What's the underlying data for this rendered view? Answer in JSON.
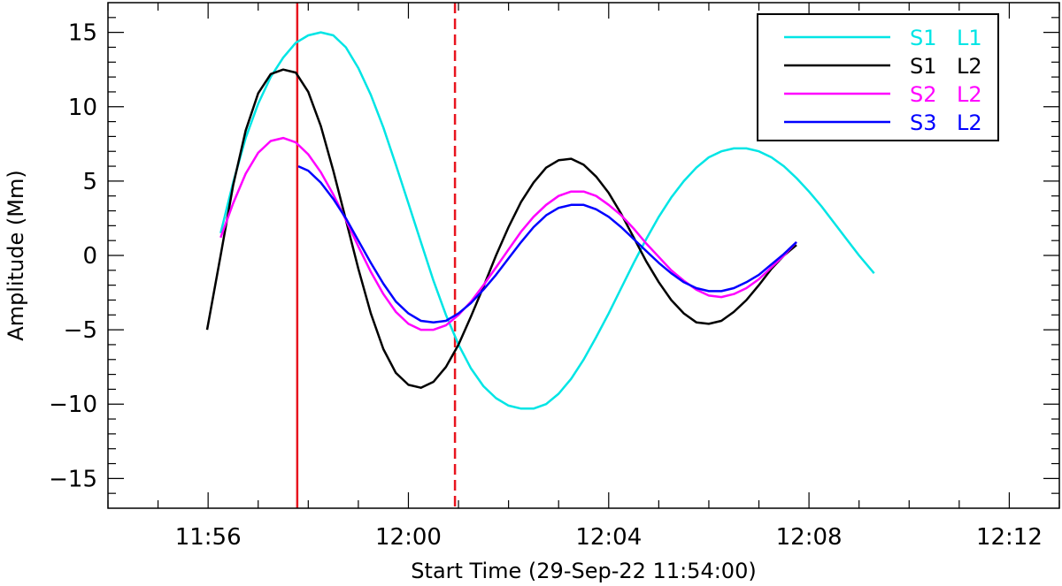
{
  "chart_data": {
    "type": "line",
    "xlabel": "Start Time (29-Sep-22 11:54:00)",
    "ylabel": "Amplitude (Mm)",
    "xlim": [
      0,
      19
    ],
    "ylim": [
      -17,
      17
    ],
    "xticks": [
      {
        "value": 2,
        "label": "11:56"
      },
      {
        "value": 6,
        "label": "12:00"
      },
      {
        "value": 10,
        "label": "12:04"
      },
      {
        "value": 14,
        "label": "12:08"
      },
      {
        "value": 18,
        "label": "12:12"
      }
    ],
    "yticks": [
      {
        "value": 15,
        "label": "15"
      },
      {
        "value": 10,
        "label": "10"
      },
      {
        "value": 5,
        "label": "5"
      },
      {
        "value": 0,
        "label": "0"
      },
      {
        "value": -5,
        "label": "−5"
      },
      {
        "value": -10,
        "label": "−10"
      },
      {
        "value": -15,
        "label": "−15"
      }
    ],
    "vlines": [
      {
        "x": 3.78,
        "color": "#e8141e",
        "style": "solid"
      },
      {
        "x": 6.93,
        "color": "#e8141e",
        "style": "dashed"
      }
    ],
    "legend_position": "top-right",
    "series": [
      {
        "name_parts": [
          "S1",
          "L1"
        ],
        "color": "#00e5e5",
        "points": [
          [
            2.25,
            1.5
          ],
          [
            2.5,
            4.9
          ],
          [
            2.75,
            7.9
          ],
          [
            3.0,
            10.2
          ],
          [
            3.25,
            12.0
          ],
          [
            3.5,
            13.3
          ],
          [
            3.75,
            14.3
          ],
          [
            4.0,
            14.8
          ],
          [
            4.25,
            15.0
          ],
          [
            4.5,
            14.8
          ],
          [
            4.75,
            14.0
          ],
          [
            5.0,
            12.6
          ],
          [
            5.25,
            10.8
          ],
          [
            5.5,
            8.6
          ],
          [
            5.75,
            6.1
          ],
          [
            6.0,
            3.5
          ],
          [
            6.25,
            0.9
          ],
          [
            6.5,
            -1.7
          ],
          [
            6.75,
            -4.0
          ],
          [
            7.0,
            -6.0
          ],
          [
            7.25,
            -7.6
          ],
          [
            7.5,
            -8.8
          ],
          [
            7.75,
            -9.6
          ],
          [
            8.0,
            -10.1
          ],
          [
            8.25,
            -10.3
          ],
          [
            8.5,
            -10.3
          ],
          [
            8.75,
            -10.0
          ],
          [
            9.0,
            -9.3
          ],
          [
            9.25,
            -8.3
          ],
          [
            9.5,
            -7.0
          ],
          [
            9.75,
            -5.5
          ],
          [
            10.0,
            -3.9
          ],
          [
            10.25,
            -2.2
          ],
          [
            10.5,
            -0.5
          ],
          [
            10.75,
            1.1
          ],
          [
            11.0,
            2.6
          ],
          [
            11.25,
            3.9
          ],
          [
            11.5,
            5.0
          ],
          [
            11.75,
            5.9
          ],
          [
            12.0,
            6.6
          ],
          [
            12.25,
            7.0
          ],
          [
            12.5,
            7.2
          ],
          [
            12.75,
            7.2
          ],
          [
            13.0,
            7.0
          ],
          [
            13.25,
            6.6
          ],
          [
            13.5,
            6.0
          ],
          [
            13.75,
            5.2
          ],
          [
            14.0,
            4.3
          ],
          [
            14.25,
            3.3
          ],
          [
            14.5,
            2.2
          ],
          [
            14.75,
            1.1
          ],
          [
            15.0,
            0.0
          ],
          [
            15.3,
            -1.2
          ]
        ]
      },
      {
        "name_parts": [
          "S1",
          "L2"
        ],
        "color": "#000000",
        "points": [
          [
            1.98,
            -5.0
          ],
          [
            2.25,
            0.0
          ],
          [
            2.5,
            4.7
          ],
          [
            2.75,
            8.4
          ],
          [
            3.0,
            10.9
          ],
          [
            3.25,
            12.2
          ],
          [
            3.5,
            12.5
          ],
          [
            3.75,
            12.3
          ],
          [
            4.0,
            11.0
          ],
          [
            4.25,
            8.7
          ],
          [
            4.5,
            5.7
          ],
          [
            4.75,
            2.4
          ],
          [
            5.0,
            -0.9
          ],
          [
            5.25,
            -3.9
          ],
          [
            5.5,
            -6.3
          ],
          [
            5.75,
            -7.9
          ],
          [
            6.0,
            -8.7
          ],
          [
            6.25,
            -8.9
          ],
          [
            6.5,
            -8.5
          ],
          [
            6.75,
            -7.5
          ],
          [
            7.0,
            -6.0
          ],
          [
            7.25,
            -4.1
          ],
          [
            7.5,
            -2.1
          ],
          [
            7.75,
            0.0
          ],
          [
            8.0,
            1.9
          ],
          [
            8.25,
            3.6
          ],
          [
            8.5,
            4.9
          ],
          [
            8.75,
            5.9
          ],
          [
            9.0,
            6.4
          ],
          [
            9.25,
            6.5
          ],
          [
            9.5,
            6.1
          ],
          [
            9.75,
            5.3
          ],
          [
            10.0,
            4.2
          ],
          [
            10.25,
            2.8
          ],
          [
            10.5,
            1.2
          ],
          [
            10.75,
            -0.4
          ],
          [
            11.0,
            -1.8
          ],
          [
            11.25,
            -3.0
          ],
          [
            11.5,
            -3.9
          ],
          [
            11.75,
            -4.5
          ],
          [
            12.0,
            -4.6
          ],
          [
            12.25,
            -4.4
          ],
          [
            12.5,
            -3.8
          ],
          [
            12.75,
            -3.0
          ],
          [
            13.0,
            -2.0
          ],
          [
            13.25,
            -0.9
          ],
          [
            13.5,
            0.0
          ],
          [
            13.75,
            0.7
          ]
        ]
      },
      {
        "name_parts": [
          "S2",
          "L2"
        ],
        "color": "#ff00ff",
        "points": [
          [
            2.25,
            1.2
          ],
          [
            2.5,
            3.5
          ],
          [
            2.75,
            5.5
          ],
          [
            3.0,
            6.9
          ],
          [
            3.25,
            7.7
          ],
          [
            3.5,
            7.9
          ],
          [
            3.75,
            7.6
          ],
          [
            4.0,
            6.8
          ],
          [
            4.25,
            5.6
          ],
          [
            4.5,
            4.1
          ],
          [
            4.75,
            2.4
          ],
          [
            5.0,
            0.6
          ],
          [
            5.25,
            -1.1
          ],
          [
            5.5,
            -2.6
          ],
          [
            5.75,
            -3.8
          ],
          [
            6.0,
            -4.6
          ],
          [
            6.25,
            -5.0
          ],
          [
            6.5,
            -5.0
          ],
          [
            6.75,
            -4.7
          ],
          [
            7.0,
            -4.0
          ],
          [
            7.25,
            -3.1
          ],
          [
            7.5,
            -2.0
          ],
          [
            7.75,
            -0.8
          ],
          [
            8.0,
            0.4
          ],
          [
            8.25,
            1.6
          ],
          [
            8.5,
            2.6
          ],
          [
            8.75,
            3.4
          ],
          [
            9.0,
            4.0
          ],
          [
            9.25,
            4.3
          ],
          [
            9.5,
            4.3
          ],
          [
            9.75,
            4.0
          ],
          [
            10.0,
            3.4
          ],
          [
            10.25,
            2.7
          ],
          [
            10.5,
            1.8
          ],
          [
            10.75,
            0.8
          ],
          [
            11.0,
            -0.1
          ],
          [
            11.25,
            -1.0
          ],
          [
            11.5,
            -1.7
          ],
          [
            11.75,
            -2.3
          ],
          [
            12.0,
            -2.7
          ],
          [
            12.25,
            -2.8
          ],
          [
            12.5,
            -2.6
          ],
          [
            12.75,
            -2.2
          ],
          [
            13.0,
            -1.6
          ],
          [
            13.25,
            -0.8
          ],
          [
            13.5,
            0.0
          ],
          [
            13.75,
            0.9
          ]
        ]
      },
      {
        "name_parts": [
          "S3",
          "L2"
        ],
        "color": "#0000ff",
        "points": [
          [
            3.8,
            6.0
          ],
          [
            4.0,
            5.7
          ],
          [
            4.25,
            4.9
          ],
          [
            4.5,
            3.8
          ],
          [
            4.75,
            2.5
          ],
          [
            5.0,
            1.0
          ],
          [
            5.25,
            -0.5
          ],
          [
            5.5,
            -1.9
          ],
          [
            5.75,
            -3.1
          ],
          [
            6.0,
            -3.9
          ],
          [
            6.25,
            -4.4
          ],
          [
            6.5,
            -4.5
          ],
          [
            6.75,
            -4.4
          ],
          [
            7.0,
            -3.9
          ],
          [
            7.25,
            -3.2
          ],
          [
            7.5,
            -2.3
          ],
          [
            7.75,
            -1.3
          ],
          [
            8.0,
            -0.2
          ],
          [
            8.25,
            0.9
          ],
          [
            8.5,
            1.9
          ],
          [
            8.75,
            2.7
          ],
          [
            9.0,
            3.2
          ],
          [
            9.25,
            3.4
          ],
          [
            9.5,
            3.4
          ],
          [
            9.75,
            3.1
          ],
          [
            10.0,
            2.6
          ],
          [
            10.25,
            1.9
          ],
          [
            10.5,
            1.1
          ],
          [
            10.75,
            0.3
          ],
          [
            11.0,
            -0.5
          ],
          [
            11.25,
            -1.2
          ],
          [
            11.5,
            -1.8
          ],
          [
            11.75,
            -2.2
          ],
          [
            12.0,
            -2.4
          ],
          [
            12.25,
            -2.4
          ],
          [
            12.5,
            -2.2
          ],
          [
            12.75,
            -1.8
          ],
          [
            13.0,
            -1.3
          ],
          [
            13.25,
            -0.6
          ],
          [
            13.5,
            0.1
          ],
          [
            13.75,
            0.9
          ]
        ]
      }
    ]
  }
}
